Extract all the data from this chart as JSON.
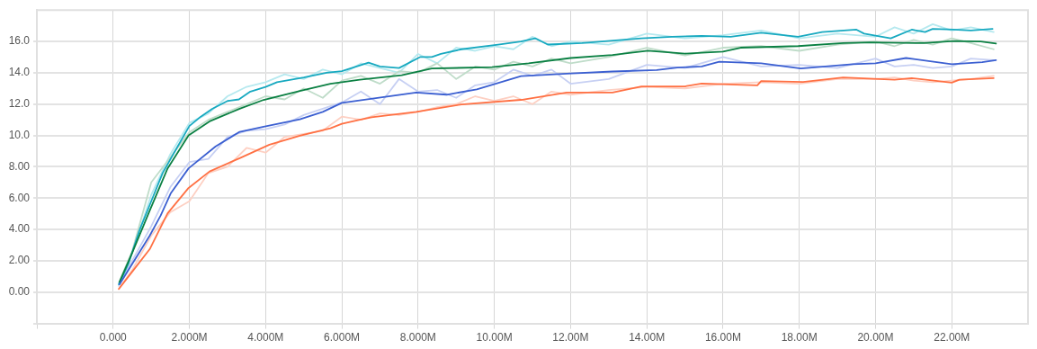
{
  "chart_data": {
    "type": "line",
    "xlim": [
      -2000000,
      24000000
    ],
    "ylim": [
      -2,
      18
    ],
    "xticks": [
      {
        "value": -2000000,
        "label": null
      },
      {
        "value": 0,
        "label": "0.000"
      },
      {
        "value": 2000000,
        "label": "2.000M"
      },
      {
        "value": 4000000,
        "label": "4.000M"
      },
      {
        "value": 6000000,
        "label": "6.000M"
      },
      {
        "value": 8000000,
        "label": "8.000M"
      },
      {
        "value": 10000000,
        "label": "10.00M"
      },
      {
        "value": 12000000,
        "label": "12.00M"
      },
      {
        "value": 14000000,
        "label": "14.00M"
      },
      {
        "value": 16000000,
        "label": "16.00M"
      },
      {
        "value": 18000000,
        "label": "18.00M"
      },
      {
        "value": 20000000,
        "label": "20.00M"
      },
      {
        "value": 22000000,
        "label": "22.00M"
      }
    ],
    "yticks": [
      {
        "value": -2,
        "label": null
      },
      {
        "value": 0,
        "label": "0.00"
      },
      {
        "value": 2,
        "label": "2.00"
      },
      {
        "value": 4,
        "label": "4.00"
      },
      {
        "value": 6,
        "label": "6.00"
      },
      {
        "value": 8,
        "label": "8.00"
      },
      {
        "value": 10,
        "label": "10.0"
      },
      {
        "value": 12,
        "label": "12.0"
      },
      {
        "value": 14,
        "label": "14.0"
      },
      {
        "value": 16,
        "label": "16.0"
      }
    ],
    "grid": true,
    "legend": false,
    "marker": "none",
    "line_style": "solid",
    "series": [
      {
        "color": "#b6e9ef",
        "x": [
          150000,
          500000,
          1000000,
          1500000,
          2000000,
          2500000,
          3000000,
          3500000,
          4000000,
          4500000,
          5000000,
          5500000,
          6000000,
          6500000,
          7000000,
          7500000,
          8000000,
          8500000,
          9000000,
          9500000,
          10000000,
          10500000,
          11000000,
          11500000,
          12000000,
          13000000,
          14000000,
          15000000,
          16000000,
          17000000,
          18000000,
          19000000,
          20000000,
          20500000,
          21000000,
          21500000,
          22000000,
          22500000,
          23100000
        ],
        "values": [
          0.5,
          2.5,
          6.2,
          8.8,
          10.8,
          11.4,
          12.5,
          13.1,
          13.4,
          13.9,
          13.6,
          14.2,
          13.9,
          14.6,
          14.3,
          14.0,
          15.2,
          14.6,
          15.6,
          15.4,
          15.7,
          15.5,
          16.3,
          15.7,
          16.0,
          15.8,
          16.5,
          16.2,
          16.4,
          16.7,
          16.2,
          16.5,
          16.3,
          16.9,
          16.5,
          17.1,
          16.7,
          16.9,
          16.6
        ]
      },
      {
        "color": "#bfdcc9",
        "x": [
          150000,
          500000,
          1000000,
          1500000,
          2000000,
          2500000,
          3000000,
          3500000,
          4000000,
          4500000,
          5000000,
          5500000,
          6000000,
          6500000,
          7000000,
          7500000,
          8000000,
          8500000,
          9000000,
          9500000,
          10000000,
          10500000,
          11000000,
          11500000,
          12000000,
          13000000,
          14000000,
          15000000,
          16000000,
          17000000,
          18000000,
          19000000,
          20000000,
          20500000,
          21000000,
          21500000,
          22000000,
          22500000,
          23100000
        ],
        "values": [
          0.6,
          2.6,
          7.0,
          8.6,
          10.2,
          11.0,
          11.5,
          12.0,
          12.5,
          12.3,
          13.0,
          12.4,
          13.5,
          13.8,
          13.3,
          14.1,
          14.0,
          14.6,
          13.6,
          14.4,
          14.2,
          14.7,
          14.4,
          14.9,
          14.6,
          15.0,
          15.6,
          15.1,
          15.6,
          15.7,
          15.4,
          15.8,
          16.0,
          15.7,
          16.1,
          15.8,
          16.2,
          15.9,
          15.5
        ]
      },
      {
        "color": "#c7d0f3",
        "x": [
          150000,
          500000,
          1000000,
          1500000,
          2000000,
          2500000,
          3000000,
          3500000,
          4000000,
          4500000,
          5000000,
          5500000,
          6000000,
          6500000,
          7000000,
          7500000,
          8000000,
          8500000,
          9000000,
          9500000,
          10000000,
          10500000,
          11000000,
          11500000,
          12000000,
          13000000,
          14000000,
          15000000,
          16000000,
          17000000,
          18000000,
          19000000,
          20000000,
          20500000,
          21000000,
          21500000,
          22000000,
          22500000,
          23100000
        ],
        "values": [
          0.4,
          2.0,
          4.2,
          6.7,
          8.3,
          8.5,
          9.9,
          10.3,
          10.4,
          10.7,
          11.3,
          11.7,
          12.1,
          12.8,
          12.0,
          13.6,
          12.8,
          12.9,
          12.4,
          13.2,
          13.4,
          14.2,
          13.8,
          14.2,
          13.3,
          13.6,
          14.5,
          14.3,
          15.0,
          14.4,
          14.5,
          14.3,
          14.9,
          14.4,
          14.5,
          14.3,
          14.4,
          14.9,
          14.8
        ]
      },
      {
        "color": "#fdd0c3",
        "x": [
          150000,
          500000,
          1000000,
          1500000,
          2000000,
          2500000,
          3000000,
          3500000,
          4000000,
          4500000,
          5000000,
          5500000,
          6000000,
          6500000,
          7000000,
          7500000,
          8000000,
          8500000,
          9000000,
          9500000,
          10000000,
          10500000,
          11000000,
          11500000,
          12000000,
          13000000,
          14000000,
          15000000,
          16000000,
          17000000,
          18000000,
          19000000,
          20000000,
          20500000,
          21000000,
          21500000,
          22000000,
          22500000,
          23100000
        ],
        "values": [
          0.2,
          1.4,
          3.6,
          5.1,
          5.8,
          7.6,
          8.0,
          9.2,
          8.9,
          9.9,
          10.1,
          10.3,
          11.2,
          11.0,
          11.4,
          11.3,
          11.5,
          11.8,
          12.0,
          12.5,
          12.2,
          12.5,
          12.0,
          12.8,
          12.6,
          12.9,
          13.1,
          13.0,
          13.3,
          13.4,
          13.3,
          13.6,
          13.6,
          13.7,
          13.5,
          13.4,
          13.5,
          13.6,
          13.8
        ]
      },
      {
        "color": "#17a9c0",
        "x": [
          150000,
          400000,
          700000,
          1000000,
          1300000,
          1600000,
          2000000,
          2300000,
          2600000,
          3000000,
          3300000,
          3600000,
          4000000,
          4300000,
          5000000,
          5600000,
          6000000,
          6700000,
          7000000,
          7500000,
          8050000,
          8360000,
          8600000,
          9140000,
          10100000,
          10700000,
          11070000,
          11400000,
          12300000,
          13860000,
          14660000,
          15440000,
          16200000,
          17000000,
          17970000,
          18600000,
          19500000,
          19700000,
          20400000,
          20950000,
          21300000,
          21500000,
          22050000,
          22500000,
          23070000
        ],
        "values": [
          0.5,
          1.8,
          4.0,
          5.8,
          7.6,
          8.9,
          10.6,
          11.2,
          11.7,
          12.2,
          12.3,
          12.8,
          13.1,
          13.4,
          13.7,
          14.0,
          14.1,
          14.65,
          14.4,
          14.3,
          15.0,
          15.0,
          15.2,
          15.5,
          15.8,
          16.0,
          16.2,
          15.8,
          15.9,
          16.2,
          16.3,
          16.35,
          16.3,
          16.55,
          16.3,
          16.6,
          16.75,
          16.5,
          16.2,
          16.75,
          16.6,
          16.8,
          16.75,
          16.7,
          16.8
        ]
      },
      {
        "color": "#0b8043",
        "x": [
          170000,
          500000,
          960000,
          1430000,
          1980000,
          2530000,
          3320000,
          3950000,
          4900000,
          5700000,
          6000000,
          6470000,
          7570000,
          8360000,
          9940000,
          10900000,
          12000000,
          13100000,
          14030000,
          15000000,
          15440000,
          16000000,
          16460000,
          17970000,
          19150000,
          19850000,
          21270000,
          22050000,
          22760000,
          23160000
        ],
        "values": [
          0.65,
          2.5,
          5.2,
          7.9,
          10.0,
          10.9,
          11.7,
          12.27,
          12.84,
          13.3,
          13.4,
          13.56,
          13.84,
          14.27,
          14.36,
          14.6,
          14.94,
          15.13,
          15.41,
          15.22,
          15.28,
          15.35,
          15.6,
          15.7,
          15.89,
          15.94,
          15.89,
          16.02,
          16.0,
          15.86
        ]
      },
      {
        "color": "#3b5fd1",
        "x": [
          170000,
          500000,
          960000,
          1250000,
          1510000,
          1980000,
          2690000,
          3320000,
          3950000,
          4900000,
          5500000,
          6000000,
          7950000,
          8750000,
          9540000,
          10700000,
          11900000,
          13100000,
          14260000,
          14800000,
          15440000,
          15900000,
          17000000,
          18040000,
          19400000,
          20000000,
          20800000,
          22000000,
          22800000,
          23160000
        ],
        "values": [
          0.5,
          1.8,
          3.6,
          4.9,
          6.3,
          7.9,
          9.3,
          10.23,
          10.55,
          11.03,
          11.5,
          12.08,
          12.74,
          12.6,
          12.94,
          13.79,
          13.94,
          14.08,
          14.17,
          14.33,
          14.4,
          14.7,
          14.6,
          14.27,
          14.55,
          14.6,
          14.94,
          14.55,
          14.67,
          14.8
        ]
      },
      {
        "color": "#ff7043",
        "x": [
          150000,
          500000,
          960000,
          1430000,
          1980000,
          2530000,
          3320000,
          4100000,
          4900000,
          5700000,
          6000000,
          6470000,
          6780000,
          7950000,
          9140000,
          10700000,
          11900000,
          13100000,
          13860000,
          15000000,
          15440000,
          16900000,
          17000000,
          18100000,
          19150000,
          20500000,
          20950000,
          22000000,
          22200000,
          23100000
        ],
        "values": [
          0.2,
          1.3,
          2.74,
          5.03,
          6.65,
          7.7,
          8.55,
          9.41,
          9.98,
          10.46,
          10.74,
          11.0,
          11.16,
          11.5,
          11.98,
          12.27,
          12.74,
          12.74,
          13.13,
          13.13,
          13.31,
          13.2,
          13.47,
          13.41,
          13.7,
          13.56,
          13.66,
          13.37,
          13.56,
          13.66
        ]
      }
    ]
  }
}
